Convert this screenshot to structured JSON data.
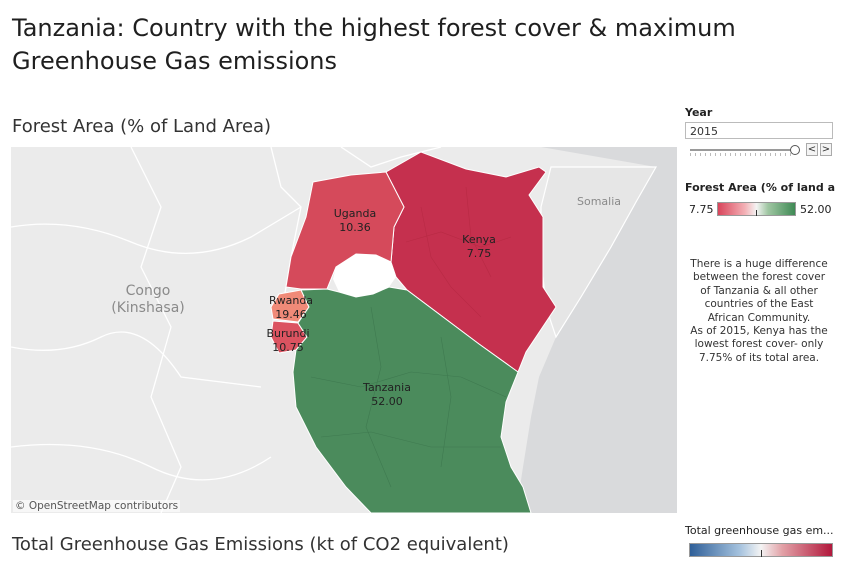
{
  "dashboard": {
    "title": "Tanzania: Country with the highest forest cover & maximum Greenhouse Gas emissions"
  },
  "map_sheet": {
    "title": "Forest Area (% of Land Area)",
    "attribution": "© OpenStreetMap contributors",
    "country_labels": [
      {
        "name": "Uganda",
        "value": "10.36",
        "color": "#d54a5b"
      },
      {
        "name": "Kenya",
        "value": "7.75",
        "color": "#c5304e"
      },
      {
        "name": "Rwanda",
        "value": "19.46",
        "color": "#f08a78"
      },
      {
        "name": "Burundi",
        "value": "10.75",
        "color": "#db5360"
      },
      {
        "name": "Tanzania",
        "value": "52.00",
        "color": "#4b8b5c"
      }
    ],
    "region_labels": [
      "Congo",
      "(Kinshasa)",
      "Somalia"
    ]
  },
  "filters": {
    "year_label": "Year",
    "year_value": "2015",
    "prev_symbol": "<",
    "next_symbol": ">"
  },
  "forest_legend": {
    "title": "Forest Area (% of land ar...",
    "min": "7.75",
    "max": "52.00",
    "low_color": "#d9455b",
    "high_color": "#3f8a55"
  },
  "annotation": {
    "lines": [
      "There is a huge difference",
      "between the forest cover",
      "of Tanzania & all other",
      "countries of the East",
      "African Community.",
      "As of 2015, Kenya has the",
      "lowest forest cover- only",
      "7.75% of its total area."
    ]
  },
  "ghg_sheet": {
    "title": "Total Greenhouse Gas Emissions (kt of CO2 equivalent)",
    "legend_title": "Total greenhouse gas em...",
    "low_color": "#2f5f98",
    "high_color": "#b2183c"
  }
}
